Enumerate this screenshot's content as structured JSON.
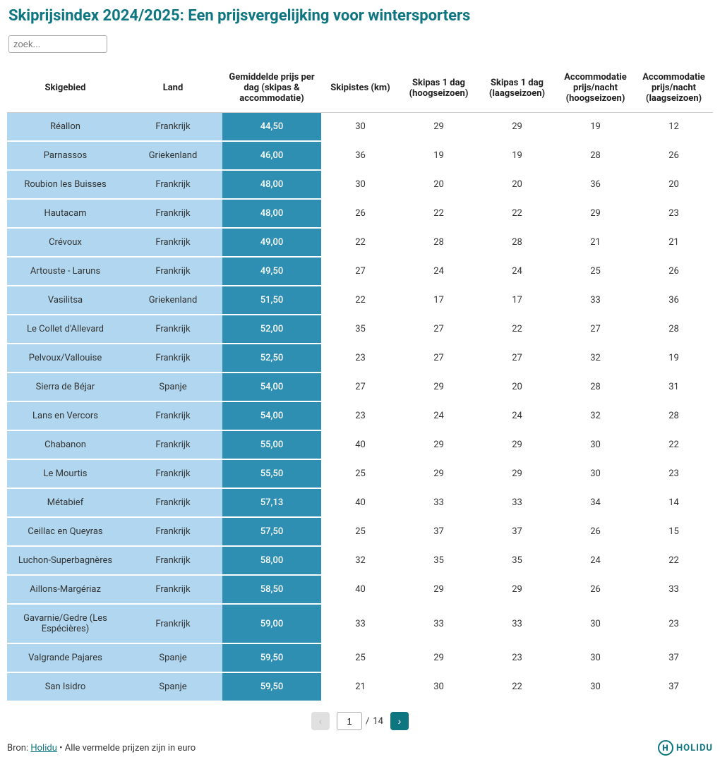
{
  "title": "Skiprijsindex 2024/2025: Een prijsvergelijking voor wintersporters",
  "search": {
    "placeholder": "zoek..."
  },
  "colors": {
    "accent": "#0d7680",
    "col01_bg": "#b0d7ef",
    "col2_bg": "#2f8fb2",
    "col2_text": "#ffffff",
    "row_border": "#ffffff",
    "header_border": "#cccccc",
    "text": "#333333",
    "pag_disabled_bg": "#e0e0e0",
    "pag_enabled_bg": "#0d7680"
  },
  "table": {
    "columns": [
      "Skigebied",
      "Land",
      "Gemiddelde prijs per dag (skipas & accommodatie)",
      "Skipistes (km)",
      "Skipas 1 dag (hoogseizoen)",
      "Skipas 1 dag (laagseizoen)",
      "Accommodatie prijs/nacht (hoogseizoen)",
      "Accommodatie prijs/nacht (laagseizoen)"
    ],
    "highlight_col_index": 2,
    "rows": [
      [
        "Réallon",
        "Frankrijk",
        "44,50",
        "30",
        "29",
        "29",
        "19",
        "12"
      ],
      [
        "Parnassos",
        "Griekenland",
        "46,00",
        "36",
        "19",
        "19",
        "28",
        "26"
      ],
      [
        "Roubion les Buisses",
        "Frankrijk",
        "48,00",
        "30",
        "20",
        "20",
        "36",
        "20"
      ],
      [
        "Hautacam",
        "Frankrijk",
        "48,00",
        "26",
        "22",
        "22",
        "29",
        "23"
      ],
      [
        "Crévoux",
        "Frankrijk",
        "49,00",
        "22",
        "28",
        "28",
        "21",
        "21"
      ],
      [
        "Artouste - Laruns",
        "Frankrijk",
        "49,50",
        "27",
        "24",
        "24",
        "25",
        "26"
      ],
      [
        "Vasilitsa",
        "Griekenland",
        "51,50",
        "22",
        "17",
        "17",
        "33",
        "36"
      ],
      [
        "Le Collet d'Allevard",
        "Frankrijk",
        "52,00",
        "35",
        "27",
        "22",
        "27",
        "28"
      ],
      [
        "Pelvoux/Vallouise",
        "Frankrijk",
        "52,50",
        "23",
        "27",
        "27",
        "32",
        "19"
      ],
      [
        "Sierra de Béjar",
        "Spanje",
        "54,00",
        "27",
        "29",
        "20",
        "28",
        "31"
      ],
      [
        "Lans en Vercors",
        "Frankrijk",
        "54,00",
        "23",
        "24",
        "24",
        "32",
        "28"
      ],
      [
        "Chabanon",
        "Frankrijk",
        "55,00",
        "40",
        "29",
        "29",
        "30",
        "22"
      ],
      [
        "Le Mourtis",
        "Frankrijk",
        "55,50",
        "25",
        "29",
        "29",
        "30",
        "23"
      ],
      [
        "Métabief",
        "Frankrijk",
        "57,13",
        "40",
        "33",
        "33",
        "34",
        "14"
      ],
      [
        "Ceillac en Queyras",
        "Frankrijk",
        "57,50",
        "25",
        "37",
        "37",
        "26",
        "15"
      ],
      [
        "Luchon-Superbagnères",
        "Frankrijk",
        "58,00",
        "32",
        "35",
        "35",
        "24",
        "22"
      ],
      [
        "Aillons-Margériaz",
        "Frankrijk",
        "58,50",
        "40",
        "29",
        "29",
        "26",
        "33"
      ],
      [
        "Gavarnie/Gedre (Les Espécières)",
        "Frankrijk",
        "59,00",
        "33",
        "33",
        "33",
        "30",
        "23"
      ],
      [
        "Valgrande Pajares",
        "Spanje",
        "59,50",
        "25",
        "29",
        "23",
        "30",
        "37"
      ],
      [
        "San Isidro",
        "Spanje",
        "59,50",
        "21",
        "30",
        "22",
        "30",
        "37"
      ]
    ]
  },
  "pagination": {
    "prev_label": "‹",
    "next_label": "›",
    "current_page": "1",
    "separator": "/",
    "total_pages": "14"
  },
  "footer": {
    "source_prefix": "Bron: ",
    "source_link_text": "Holidu",
    "source_suffix": " • Alle vermelde prijzen zijn in euro",
    "logo_text": "HOLIDU",
    "logo_icon_text": "H"
  }
}
